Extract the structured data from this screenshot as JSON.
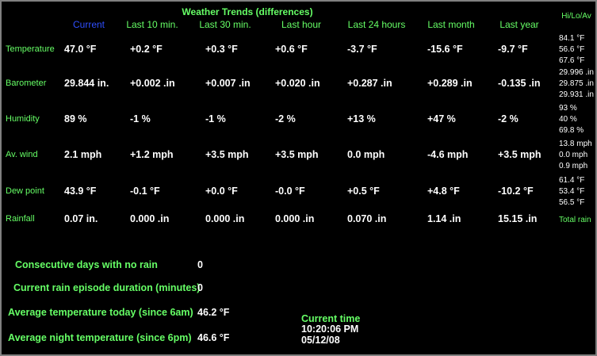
{
  "title": "Weather Trends (differences)",
  "columns": [
    "Current",
    "Last 10 min.",
    "Last 30 min.",
    "Last hour",
    "Last 24 hours",
    "Last month",
    "Last year",
    "Hi/Lo/Av"
  ],
  "rows": [
    {
      "label": "Temperature",
      "values": [
        "47.0 °F",
        "+0.2 °F",
        "+0.3 °F",
        "+0.6 °F",
        "-3.7 °F",
        "-15.6 °F",
        "-9.7 °F"
      ],
      "hilo": [
        "84.1 °F",
        "56.6 °F",
        "67.6 °F"
      ]
    },
    {
      "label": "Barometer",
      "values": [
        "29.844 in.",
        "+0.002 .in",
        "+0.007 .in",
        "+0.020 .in",
        "+0.287 .in",
        "+0.289 .in",
        "-0.135 .in"
      ],
      "hilo": [
        "29.996 .in",
        "29.875 .in",
        "29.931 .in"
      ]
    },
    {
      "label": "Humidity",
      "values": [
        "89 %",
        "-1 %",
        "-1 %",
        "-2 %",
        "+13 %",
        "+47 %",
        "-2 %"
      ],
      "hilo": [
        "93 %",
        "40 %",
        "69.8 %"
      ]
    },
    {
      "label": "Av. wind",
      "values": [
        "2.1 mph",
        "+1.2 mph",
        "+3.5 mph",
        "+3.5 mph",
        "0.0 mph",
        "-4.6 mph",
        "+3.5 mph"
      ],
      "hilo": [
        "13.8 mph",
        "0.0 mph",
        "0.9 mph"
      ]
    },
    {
      "label": "Dew point",
      "values": [
        "43.9 °F",
        "-0.1 °F",
        "+0.0 °F",
        "-0.0 °F",
        "+0.5 °F",
        "+4.8 °F",
        "-10.2 °F"
      ],
      "hilo": [
        "61.4 °F",
        "53.4 °F",
        "56.5 °F"
      ]
    },
    {
      "label": "Rainfall",
      "values": [
        "0.07 in.",
        "0.000 .in",
        "0.000 .in",
        "0.000 .in",
        "0.070 .in",
        "1.14 .in",
        "15.15 .in"
      ],
      "hilo": [
        "Total rain"
      ]
    }
  ],
  "summary": [
    {
      "label": "Consecutive days with no rain",
      "value": "0"
    },
    {
      "label": "Current rain episode duration (minutes)",
      "value": "0"
    },
    {
      "label": "Average temperature today (since 6am)",
      "value": "46.2 °F"
    },
    {
      "label": "Average night temperature (since 6pm)",
      "value": "46.6 °F"
    }
  ],
  "clock": {
    "label": "Current time",
    "time": "10:20:06 PM",
    "date": "05/12/08"
  }
}
